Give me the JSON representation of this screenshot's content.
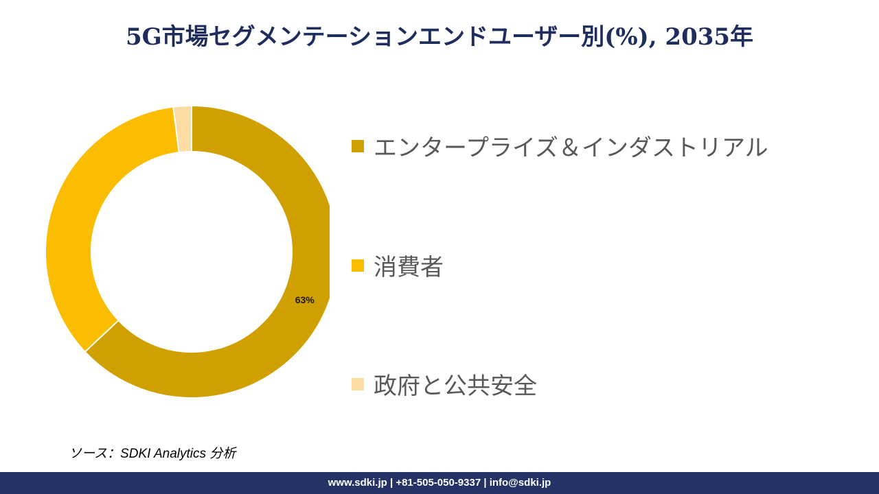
{
  "title": "5G市場セグメンテーションエンドユーザー別(%), 2035年",
  "chart_data": {
    "type": "pie",
    "subtype": "donut",
    "title": "5G市場セグメンテーションエンドユーザー別(%), 2035年",
    "categories": [
      "エンタープライズ＆インダストリアル",
      "消費者",
      "政府と公共安全"
    ],
    "values": [
      63,
      35,
      2
    ],
    "colors": [
      "#d09f00",
      "#fbbd00",
      "#fddba4"
    ],
    "data_labels": [
      "63%",
      "",
      ""
    ],
    "legend_position": "right"
  },
  "source": "ソース：SDKI Analytics 分析",
  "footer": "www.sdki.jp | +81-505-050-9337 | info@sdki.jp"
}
